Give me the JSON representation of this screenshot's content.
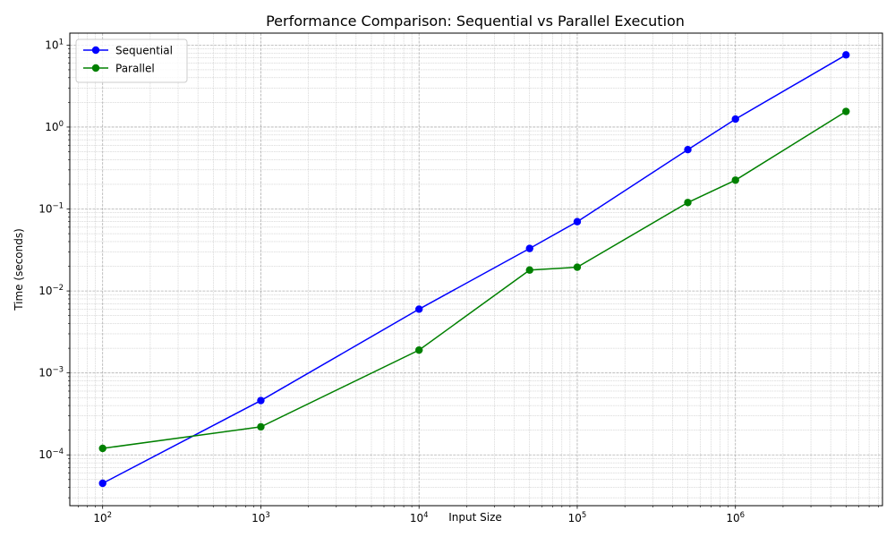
{
  "chart_data": {
    "type": "line",
    "title": "Performance Comparison: Sequential vs Parallel Execution",
    "xlabel": "Input Size",
    "ylabel": "Time (seconds)",
    "xscale": "log",
    "yscale": "log",
    "xlim": [
      62,
      8500000
    ],
    "ylim": [
      2.4e-05,
      14
    ],
    "x_major_ticks": [
      100,
      1000,
      10000,
      100000,
      1000000
    ],
    "x_tick_labels": [
      {
        "base": "10",
        "exp": "2"
      },
      {
        "base": "10",
        "exp": "3"
      },
      {
        "base": "10",
        "exp": "4"
      },
      {
        "base": "10",
        "exp": "5"
      },
      {
        "base": "10",
        "exp": "6"
      }
    ],
    "y_major_ticks": [
      0.0001,
      0.001,
      0.01,
      0.1,
      1,
      10
    ],
    "y_tick_labels": [
      {
        "base": "10",
        "exp": "−4"
      },
      {
        "base": "10",
        "exp": "−3"
      },
      {
        "base": "10",
        "exp": "−2"
      },
      {
        "base": "10",
        "exp": "−1"
      },
      {
        "base": "10",
        "exp": "0"
      },
      {
        "base": "10",
        "exp": "1"
      }
    ],
    "grid": true,
    "grid_minor": true,
    "legend_position": "top-left",
    "x": [
      100,
      1000,
      10000,
      50000,
      100000,
      500000,
      1000000,
      5000000
    ],
    "series": [
      {
        "name": "Sequential",
        "color": "#0000ff",
        "marker": "circle",
        "values": [
          4.5e-05,
          0.00046,
          0.006,
          0.033,
          0.07,
          0.53,
          1.25,
          7.6
        ]
      },
      {
        "name": "Parallel",
        "color": "#008000",
        "marker": "circle",
        "values": [
          0.00012,
          0.00022,
          0.0019,
          0.018,
          0.0195,
          0.12,
          0.225,
          1.55
        ]
      }
    ]
  }
}
